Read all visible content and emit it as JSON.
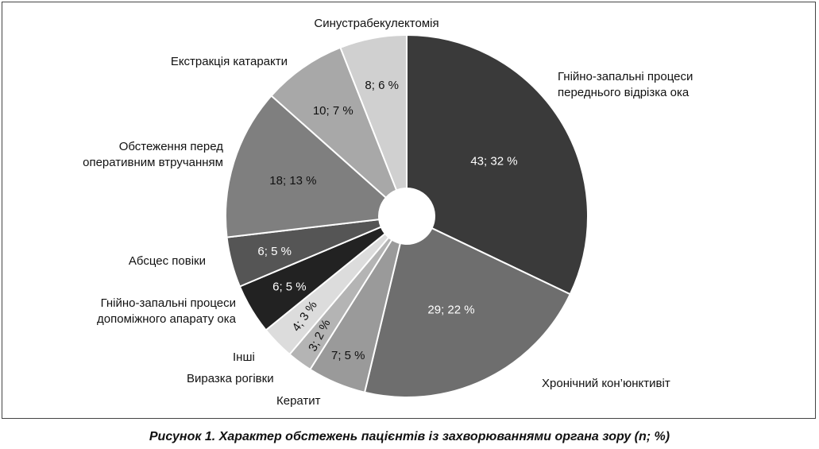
{
  "caption": "Рисунок 1.  Характер обстежень пацієнтів із захворюваннями органа зору (n; %)",
  "chart_data": {
    "type": "pie",
    "title": "",
    "slices": [
      {
        "label": [
          "Гнійно-запальні процеси",
          "переднього відрізка ока"
        ],
        "n": 43,
        "pct": 32,
        "value_label": "43; 32 %",
        "color": "#3a3a3a",
        "text_color": "#ffffff"
      },
      {
        "label": [
          "Хронічний кон’юнктивіт"
        ],
        "n": 29,
        "pct": 22,
        "value_label": "29; 22 %",
        "color": "#6e6e6e",
        "text_color": "#ffffff"
      },
      {
        "label": [
          "Кератит"
        ],
        "n": 7,
        "pct": 5,
        "value_label": "7; 5 %",
        "color": "#9a9a9a",
        "text_color": "#111111"
      },
      {
        "label": [
          "Виразка рогівки"
        ],
        "n": 3,
        "pct": 2,
        "value_label": "3; 2 %",
        "color": "#b4b4b4",
        "text_color": "#111111"
      },
      {
        "label": [
          "Інші"
        ],
        "n": 4,
        "pct": 3,
        "value_label": "4; 3 %",
        "color": "#dcdcdc",
        "text_color": "#111111"
      },
      {
        "label": [
          "Гнійно-запальні процеси",
          "допоміжного апарату ока"
        ],
        "n": 6,
        "pct": 5,
        "value_label": "6; 5 %",
        "color": "#222222",
        "text_color": "#ffffff"
      },
      {
        "label": [
          "Абсцес повіки"
        ],
        "n": 6,
        "pct": 5,
        "value_label": "6; 5 %",
        "color": "#555555",
        "text_color": "#ffffff"
      },
      {
        "label": [
          "Обстеження перед",
          "оперативним втручанням"
        ],
        "n": 18,
        "pct": 13,
        "value_label": "18; 13 %",
        "color": "#7f7f7f",
        "text_color": "#111111"
      },
      {
        "label": [
          "Екстракція катаракти"
        ],
        "n": 10,
        "pct": 7,
        "value_label": "10; 7 %",
        "color": "#a8a8a8",
        "text_color": "#111111"
      },
      {
        "label": [
          "Синустрабекулектомія"
        ],
        "n": 8,
        "pct": 6,
        "value_label": "8; 6 %",
        "color": "#d0d0d0",
        "text_color": "#111111"
      }
    ]
  }
}
